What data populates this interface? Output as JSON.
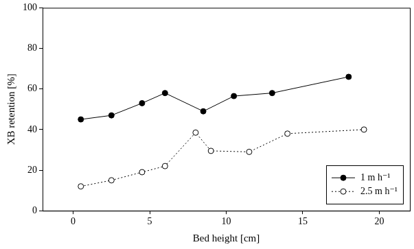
{
  "chart_data": {
    "type": "line",
    "x_label": "Bed height [cm]",
    "y_label": "XB retention [%]",
    "xlim": [
      -2,
      22
    ],
    "xticks": [
      0,
      5,
      10,
      15,
      20
    ],
    "ylim": [
      0,
      100
    ],
    "yticks": [
      0,
      20,
      40,
      60,
      80,
      100
    ],
    "grid": false,
    "legend": "lower right",
    "series": [
      {
        "name": "1 m h⁻¹",
        "color": "#000000",
        "marker": "filled_circle",
        "line_style": "solid",
        "x": [
          0.5,
          2.5,
          4.5,
          6,
          8.5,
          10.5,
          13,
          18
        ],
        "values": [
          45,
          47,
          53,
          58,
          49,
          56.5,
          58,
          66
        ]
      },
      {
        "name": "2.5 m h⁻¹",
        "color": "#000000",
        "marker": "open_circle",
        "line_style": "dotted",
        "x": [
          0.5,
          2.5,
          4.5,
          6,
          8,
          9,
          11.5,
          14,
          19
        ],
        "values": [
          12,
          15,
          19,
          22,
          38.5,
          29.5,
          29,
          38,
          40
        ]
      }
    ]
  }
}
